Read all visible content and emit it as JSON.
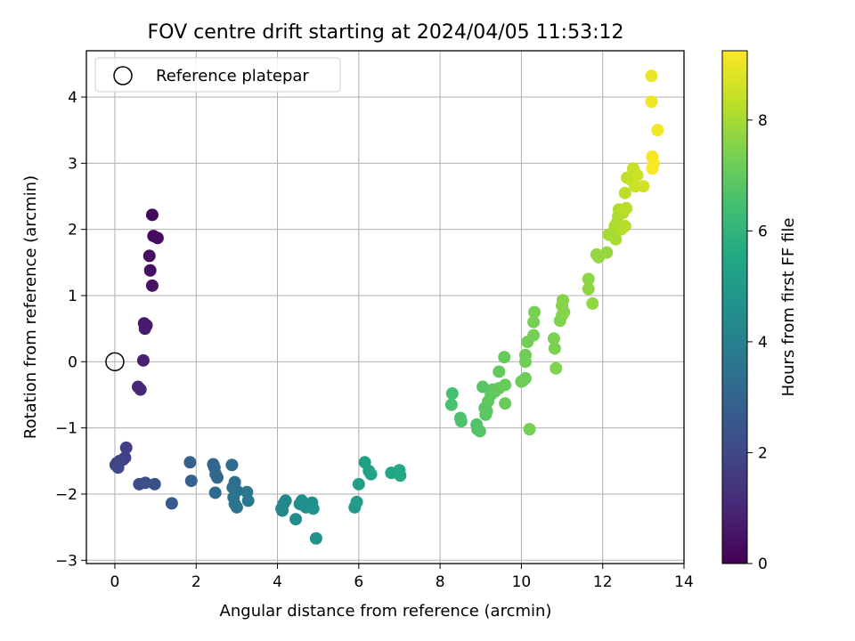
{
  "chart_data": {
    "type": "scatter",
    "title": "FOV centre drift starting at 2024/04/05 11:53:12",
    "xlabel": "Angular distance from reference (arcmin)",
    "ylabel": "Rotation from reference (arcmin)",
    "xlim": [
      -0.7,
      14.0
    ],
    "ylim": [
      -3.05,
      4.7
    ],
    "xticks": [
      0,
      2,
      4,
      6,
      8,
      10,
      12,
      14
    ],
    "yticks": [
      -3,
      -2,
      -1,
      0,
      1,
      2,
      3,
      4
    ],
    "grid": true,
    "colormap": "viridis",
    "colorbar": {
      "label": "Hours from first FF file",
      "min": 0,
      "max": 9.25,
      "ticks": [
        0,
        2,
        4,
        6,
        8
      ]
    },
    "legend": {
      "position": "top-left",
      "entries": [
        {
          "label": "Reference platepar",
          "marker": "open-circle"
        }
      ]
    },
    "reference_point": {
      "x": 0,
      "y": 0
    },
    "points": [
      {
        "x": 0.92,
        "y": 2.22,
        "c": 0.2
      },
      {
        "x": 0.95,
        "y": 1.9,
        "c": 0.25
      },
      {
        "x": 1.05,
        "y": 1.87,
        "c": 0.3
      },
      {
        "x": 0.85,
        "y": 1.6,
        "c": 0.35
      },
      {
        "x": 0.87,
        "y": 1.38,
        "c": 0.4
      },
      {
        "x": 0.92,
        "y": 1.15,
        "c": 0.45
      },
      {
        "x": 0.72,
        "y": 0.58,
        "c": 0.6
      },
      {
        "x": 0.78,
        "y": 0.55,
        "c": 0.65
      },
      {
        "x": 0.74,
        "y": 0.5,
        "c": 0.7
      },
      {
        "x": 0.7,
        "y": 0.02,
        "c": 0.85
      },
      {
        "x": 0.57,
        "y": -0.38,
        "c": 1.0
      },
      {
        "x": 0.63,
        "y": -0.42,
        "c": 1.05
      },
      {
        "x": 0.28,
        "y": -1.3,
        "c": 1.7
      },
      {
        "x": 0.25,
        "y": -1.45,
        "c": 1.75
      },
      {
        "x": 0.2,
        "y": -1.48,
        "c": 1.8
      },
      {
        "x": 0.12,
        "y": -1.5,
        "c": 1.85
      },
      {
        "x": 0.05,
        "y": -1.53,
        "c": 1.9
      },
      {
        "x": 0.02,
        "y": -1.56,
        "c": 1.95
      },
      {
        "x": 0.08,
        "y": -1.6,
        "c": 2.0
      },
      {
        "x": 0.6,
        "y": -1.85,
        "c": 2.2
      },
      {
        "x": 0.75,
        "y": -1.83,
        "c": 2.25
      },
      {
        "x": 0.98,
        "y": -1.85,
        "c": 2.3
      },
      {
        "x": 1.4,
        "y": -2.14,
        "c": 2.6
      },
      {
        "x": 1.85,
        "y": -1.52,
        "c": 2.8
      },
      {
        "x": 1.88,
        "y": -1.8,
        "c": 2.85
      },
      {
        "x": 2.42,
        "y": -1.55,
        "c": 3.0
      },
      {
        "x": 2.45,
        "y": -1.6,
        "c": 3.05
      },
      {
        "x": 2.48,
        "y": -1.7,
        "c": 3.1
      },
      {
        "x": 2.52,
        "y": -1.75,
        "c": 3.15
      },
      {
        "x": 2.47,
        "y": -1.98,
        "c": 3.2
      },
      {
        "x": 2.88,
        "y": -1.56,
        "c": 3.3
      },
      {
        "x": 2.95,
        "y": -1.82,
        "c": 3.35
      },
      {
        "x": 2.9,
        "y": -1.9,
        "c": 3.4
      },
      {
        "x": 3.0,
        "y": -1.95,
        "c": 3.45
      },
      {
        "x": 2.92,
        "y": -2.05,
        "c": 3.5
      },
      {
        "x": 2.95,
        "y": -2.15,
        "c": 3.55
      },
      {
        "x": 3.0,
        "y": -2.2,
        "c": 3.6
      },
      {
        "x": 3.25,
        "y": -1.97,
        "c": 3.65
      },
      {
        "x": 3.28,
        "y": -2.1,
        "c": 3.7
      },
      {
        "x": 4.1,
        "y": -2.22,
        "c": 4.1
      },
      {
        "x": 4.15,
        "y": -2.15,
        "c": 4.15
      },
      {
        "x": 4.2,
        "y": -2.1,
        "c": 4.2
      },
      {
        "x": 4.12,
        "y": -2.25,
        "c": 4.25
      },
      {
        "x": 4.45,
        "y": -2.38,
        "c": 4.4
      },
      {
        "x": 4.55,
        "y": -2.15,
        "c": 4.45
      },
      {
        "x": 4.6,
        "y": -2.1,
        "c": 4.5
      },
      {
        "x": 4.7,
        "y": -2.2,
        "c": 4.55
      },
      {
        "x": 4.85,
        "y": -2.13,
        "c": 4.6
      },
      {
        "x": 4.88,
        "y": -2.22,
        "c": 4.65
      },
      {
        "x": 4.95,
        "y": -2.67,
        "c": 4.7
      },
      {
        "x": 5.9,
        "y": -2.2,
        "c": 5.0
      },
      {
        "x": 5.95,
        "y": -2.12,
        "c": 5.05
      },
      {
        "x": 6.0,
        "y": -1.85,
        "c": 5.1
      },
      {
        "x": 6.15,
        "y": -1.52,
        "c": 5.2
      },
      {
        "x": 6.25,
        "y": -1.65,
        "c": 5.25
      },
      {
        "x": 6.3,
        "y": -1.7,
        "c": 5.3
      },
      {
        "x": 6.8,
        "y": -1.68,
        "c": 5.5
      },
      {
        "x": 7.0,
        "y": -1.64,
        "c": 5.55
      },
      {
        "x": 7.02,
        "y": -1.72,
        "c": 5.6
      },
      {
        "x": 8.3,
        "y": -0.48,
        "c": 6.5
      },
      {
        "x": 8.28,
        "y": -0.65,
        "c": 6.55
      },
      {
        "x": 8.5,
        "y": -0.85,
        "c": 6.6
      },
      {
        "x": 8.52,
        "y": -0.9,
        "c": 6.65
      },
      {
        "x": 8.9,
        "y": -0.95,
        "c": 6.7
      },
      {
        "x": 8.92,
        "y": -1.02,
        "c": 6.72
      },
      {
        "x": 8.98,
        "y": -1.05,
        "c": 6.75
      },
      {
        "x": 9.05,
        "y": -0.38,
        "c": 6.8
      },
      {
        "x": 9.1,
        "y": -0.7,
        "c": 6.82
      },
      {
        "x": 9.12,
        "y": -0.8,
        "c": 6.85
      },
      {
        "x": 9.15,
        "y": -0.75,
        "c": 6.87
      },
      {
        "x": 9.18,
        "y": -0.6,
        "c": 6.9
      },
      {
        "x": 9.25,
        "y": -0.5,
        "c": 6.92
      },
      {
        "x": 9.3,
        "y": -0.42,
        "c": 6.95
      },
      {
        "x": 9.35,
        "y": -0.45,
        "c": 6.97
      },
      {
        "x": 9.45,
        "y": -0.4,
        "c": 7.0
      },
      {
        "x": 9.45,
        "y": -0.15,
        "c": 7.02
      },
      {
        "x": 9.58,
        "y": 0.07,
        "c": 7.05
      },
      {
        "x": 9.6,
        "y": -0.35,
        "c": 7.07
      },
      {
        "x": 9.6,
        "y": -0.63,
        "c": 7.1
      },
      {
        "x": 10.0,
        "y": -0.3,
        "c": 7.15
      },
      {
        "x": 10.05,
        "y": -0.28,
        "c": 7.17
      },
      {
        "x": 10.1,
        "y": -0.25,
        "c": 7.2
      },
      {
        "x": 10.1,
        "y": 0.1,
        "c": 7.22
      },
      {
        "x": 10.1,
        "y": 0.0,
        "c": 7.25
      },
      {
        "x": 10.15,
        "y": 0.3,
        "c": 7.27
      },
      {
        "x": 10.2,
        "y": -1.02,
        "c": 7.3
      },
      {
        "x": 10.3,
        "y": 0.4,
        "c": 7.32
      },
      {
        "x": 10.3,
        "y": 0.6,
        "c": 7.35
      },
      {
        "x": 10.32,
        "y": 0.75,
        "c": 7.37
      },
      {
        "x": 10.8,
        "y": 0.35,
        "c": 7.4
      },
      {
        "x": 10.82,
        "y": 0.2,
        "c": 7.42
      },
      {
        "x": 10.85,
        "y": -0.1,
        "c": 7.45
      },
      {
        "x": 10.95,
        "y": 0.62,
        "c": 7.47
      },
      {
        "x": 11.0,
        "y": 0.7,
        "c": 7.5
      },
      {
        "x": 11.0,
        "y": 0.85,
        "c": 7.52
      },
      {
        "x": 11.02,
        "y": 0.93,
        "c": 7.55
      },
      {
        "x": 11.05,
        "y": 0.75,
        "c": 7.57
      },
      {
        "x": 11.65,
        "y": 1.25,
        "c": 7.65
      },
      {
        "x": 11.65,
        "y": 1.1,
        "c": 7.67
      },
      {
        "x": 11.75,
        "y": 0.88,
        "c": 7.7
      },
      {
        "x": 11.85,
        "y": 1.62,
        "c": 7.75
      },
      {
        "x": 11.9,
        "y": 1.58,
        "c": 7.77
      },
      {
        "x": 12.1,
        "y": 1.65,
        "c": 7.8
      },
      {
        "x": 12.15,
        "y": 1.92,
        "c": 8.0
      },
      {
        "x": 12.25,
        "y": 1.95,
        "c": 8.02
      },
      {
        "x": 12.3,
        "y": 2.05,
        "c": 8.05
      },
      {
        "x": 12.32,
        "y": 1.85,
        "c": 8.07
      },
      {
        "x": 12.35,
        "y": 2.1,
        "c": 8.1
      },
      {
        "x": 12.38,
        "y": 2.2,
        "c": 8.12
      },
      {
        "x": 12.4,
        "y": 2.3,
        "c": 8.15
      },
      {
        "x": 12.45,
        "y": 2.0,
        "c": 8.17
      },
      {
        "x": 12.5,
        "y": 2.25,
        "c": 8.2
      },
      {
        "x": 12.55,
        "y": 2.05,
        "c": 8.22
      },
      {
        "x": 12.58,
        "y": 2.32,
        "c": 8.25
      },
      {
        "x": 12.55,
        "y": 2.55,
        "c": 8.3
      },
      {
        "x": 12.6,
        "y": 2.78,
        "c": 8.35
      },
      {
        "x": 12.7,
        "y": 2.75,
        "c": 8.4
      },
      {
        "x": 12.75,
        "y": 2.92,
        "c": 8.45
      },
      {
        "x": 12.8,
        "y": 2.65,
        "c": 8.5
      },
      {
        "x": 12.85,
        "y": 2.82,
        "c": 8.52
      },
      {
        "x": 13.0,
        "y": 2.65,
        "c": 8.6
      },
      {
        "x": 13.2,
        "y": 4.32,
        "c": 9.0
      },
      {
        "x": 13.2,
        "y": 3.93,
        "c": 9.05
      },
      {
        "x": 13.35,
        "y": 3.5,
        "c": 9.1
      },
      {
        "x": 13.22,
        "y": 3.1,
        "c": 9.12
      },
      {
        "x": 13.25,
        "y": 3.0,
        "c": 9.15
      },
      {
        "x": 13.22,
        "y": 2.92,
        "c": 9.2
      }
    ]
  }
}
